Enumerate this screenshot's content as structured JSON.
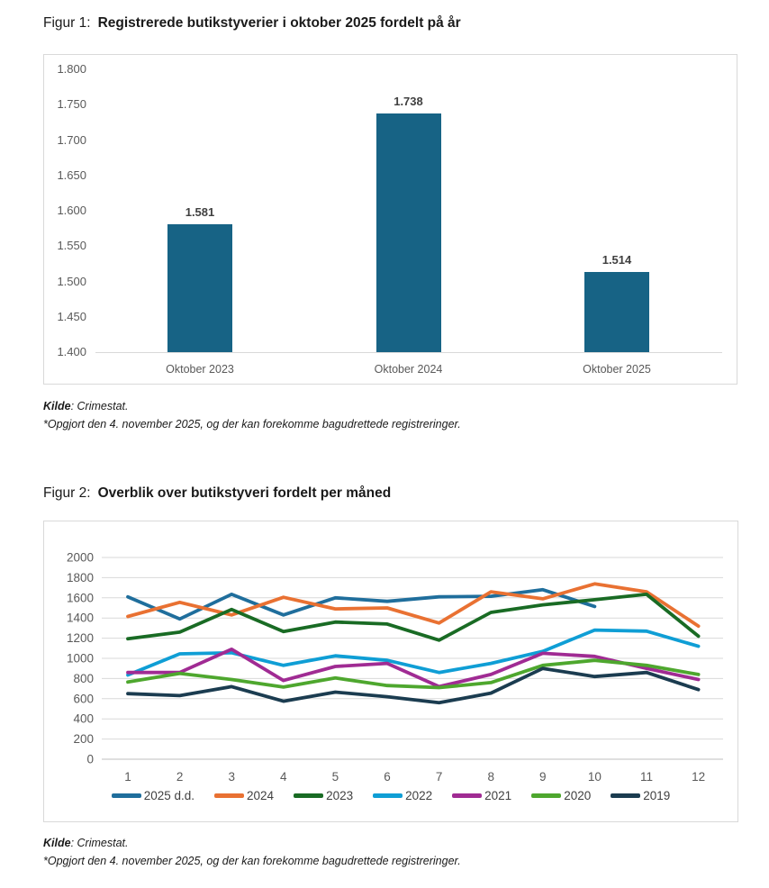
{
  "figures": [
    {
      "title_prefix": "Figur 1:",
      "title": "Registrerede butikstyverier i oktober 2025 fordelt på år",
      "source_bold": "Kilde",
      "source_rest": ": Crimestat.",
      "footnote": "*Opgjort den 4. november 2025, og der kan forekomme bagudrettede registreringer."
    },
    {
      "title_prefix": "Figur 2:",
      "title": "Overblik over butikstyveri fordelt per måned",
      "source_bold": "Kilde",
      "source_rest": ": Crimestat.",
      "footnote": "*Opgjort den 4. november 2025, og der kan forekomme bagudrettede registreringer."
    }
  ],
  "chart_data": [
    {
      "type": "bar",
      "title": "Registrerede butikstyverier i oktober 2025 fordelt på år",
      "categories": [
        "Oktober 2023",
        "Oktober 2024",
        "Oktober 2025"
      ],
      "values": [
        1581,
        1738,
        1514
      ],
      "value_labels": [
        "1.581",
        "1.738",
        "1.514"
      ],
      "y_ticks": [
        "1.800",
        "1.750",
        "1.700",
        "1.650",
        "1.600",
        "1.550",
        "1.500",
        "1.450",
        "1.400"
      ],
      "ylim": [
        1400,
        1800
      ],
      "grid": "off",
      "bar_color": "#176385",
      "xlabel": "",
      "ylabel": ""
    },
    {
      "type": "line",
      "title": "Overblik over butikstyveri fordelt per måned",
      "x": [
        1,
        2,
        3,
        4,
        5,
        6,
        7,
        8,
        9,
        10,
        11,
        12
      ],
      "x_ticks": [
        "1",
        "2",
        "3",
        "4",
        "5",
        "6",
        "7",
        "8",
        "9",
        "10",
        "11",
        "12"
      ],
      "y_ticks": [
        "2000",
        "1800",
        "1600",
        "1400",
        "1200",
        "1000",
        "800",
        "600",
        "400",
        "200",
        "0"
      ],
      "ylim": [
        0,
        2000
      ],
      "y_tick_step": 200,
      "grid": "horizontal",
      "legend_position": "bottom",
      "series": [
        {
          "name": "2025 d.d.",
          "color": "#1F6E9C",
          "values": [
            1610,
            1390,
            1635,
            1430,
            1600,
            1565,
            1610,
            1615,
            1680,
            1514
          ]
        },
        {
          "name": "2024",
          "color": "#E97132",
          "values": [
            1415,
            1555,
            1430,
            1605,
            1490,
            1500,
            1350,
            1660,
            1590,
            1738,
            1660,
            1320
          ]
        },
        {
          "name": "2023",
          "color": "#196B24",
          "values": [
            1195,
            1260,
            1485,
            1265,
            1360,
            1340,
            1180,
            1455,
            1530,
            1581,
            1635,
            1220
          ]
        },
        {
          "name": "2022",
          "color": "#0F9ED5",
          "values": [
            835,
            1045,
            1055,
            930,
            1025,
            980,
            860,
            950,
            1070,
            1280,
            1270,
            1120
          ]
        },
        {
          "name": "2021",
          "color": "#A02B93",
          "values": [
            860,
            860,
            1090,
            780,
            920,
            950,
            720,
            840,
            1050,
            1020,
            900,
            790
          ]
        },
        {
          "name": "2020",
          "color": "#4EA72E",
          "values": [
            765,
            850,
            790,
            715,
            805,
            730,
            710,
            760,
            930,
            980,
            930,
            840
          ]
        },
        {
          "name": "2019",
          "color": "#1B3C50",
          "values": [
            650,
            630,
            720,
            575,
            665,
            620,
            560,
            655,
            900,
            820,
            860,
            690
          ]
        }
      ]
    }
  ]
}
